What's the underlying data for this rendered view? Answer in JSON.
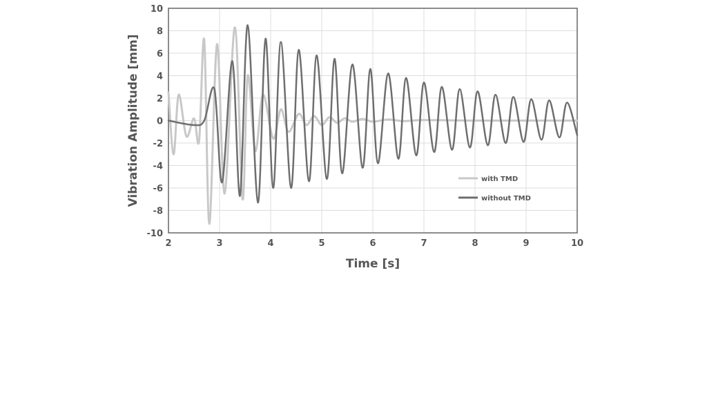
{
  "chart_data": {
    "type": "line",
    "xlabel": "Time [s]",
    "ylabel": "Vibration Amplitude [mm]",
    "xlim": [
      2,
      10
    ],
    "ylim": [
      -10,
      10
    ],
    "xticks": [
      "2",
      "3",
      "4",
      "5",
      "6",
      "7",
      "8",
      "9",
      "10"
    ],
    "yticks": [
      "-10",
      "-8",
      "-6",
      "-4",
      "-2",
      "0",
      "2",
      "4",
      "6",
      "8",
      "10"
    ],
    "grid": true,
    "legend_position": "bottom-right",
    "series": [
      {
        "name": "with TMD",
        "color": "#c8c8c8",
        "x": [
          2.0,
          2.1,
          2.2,
          2.35,
          2.5,
          2.6,
          2.7,
          2.8,
          2.95,
          3.1,
          3.3,
          3.45,
          3.55,
          3.7,
          3.85,
          4.05,
          4.2,
          4.35,
          4.55,
          4.7,
          4.85,
          5.0,
          5.15,
          5.3,
          5.45,
          5.6,
          5.8,
          6.0,
          6.3,
          6.6,
          7.0,
          8.0,
          9.0,
          10.0
        ],
        "y": [
          2.5,
          -3.0,
          2.3,
          -1.4,
          0.2,
          -1.8,
          7.2,
          -9.2,
          6.8,
          -6.5,
          8.3,
          -7.0,
          4.0,
          -2.7,
          2.3,
          -1.6,
          1.0,
          -1.0,
          0.6,
          -0.4,
          0.4,
          -0.4,
          0.3,
          -0.2,
          0.2,
          -0.1,
          0.15,
          -0.1,
          0.1,
          -0.05,
          0.05,
          0.0,
          0.0,
          0.0
        ]
      },
      {
        "name": "without TMD",
        "color": "#6e6e6e",
        "x": [
          2.0,
          2.5,
          2.7,
          2.9,
          3.05,
          3.25,
          3.4,
          3.55,
          3.75,
          3.9,
          4.05,
          4.2,
          4.4,
          4.55,
          4.75,
          4.9,
          5.1,
          5.25,
          5.4,
          5.6,
          5.8,
          5.95,
          6.1,
          6.3,
          6.5,
          6.65,
          6.85,
          7.0,
          7.2,
          7.35,
          7.55,
          7.7,
          7.9,
          8.05,
          8.25,
          8.4,
          8.6,
          8.75,
          8.95,
          9.1,
          9.3,
          9.45,
          9.65,
          9.8,
          10.0
        ],
        "y": [
          0.0,
          -0.4,
          0.0,
          2.8,
          -5.5,
          5.3,
          -6.7,
          8.5,
          -7.3,
          7.3,
          -6.0,
          7.0,
          -6.0,
          6.3,
          -5.4,
          5.8,
          -5.2,
          5.5,
          -4.7,
          5.0,
          -4.2,
          4.6,
          -3.8,
          4.2,
          -3.4,
          3.8,
          -3.1,
          3.4,
          -2.8,
          3.0,
          -2.6,
          2.8,
          -2.4,
          2.6,
          -2.2,
          2.3,
          -2.0,
          2.1,
          -1.9,
          1.9,
          -1.7,
          1.8,
          -1.5,
          1.6,
          -1.3
        ]
      }
    ]
  }
}
